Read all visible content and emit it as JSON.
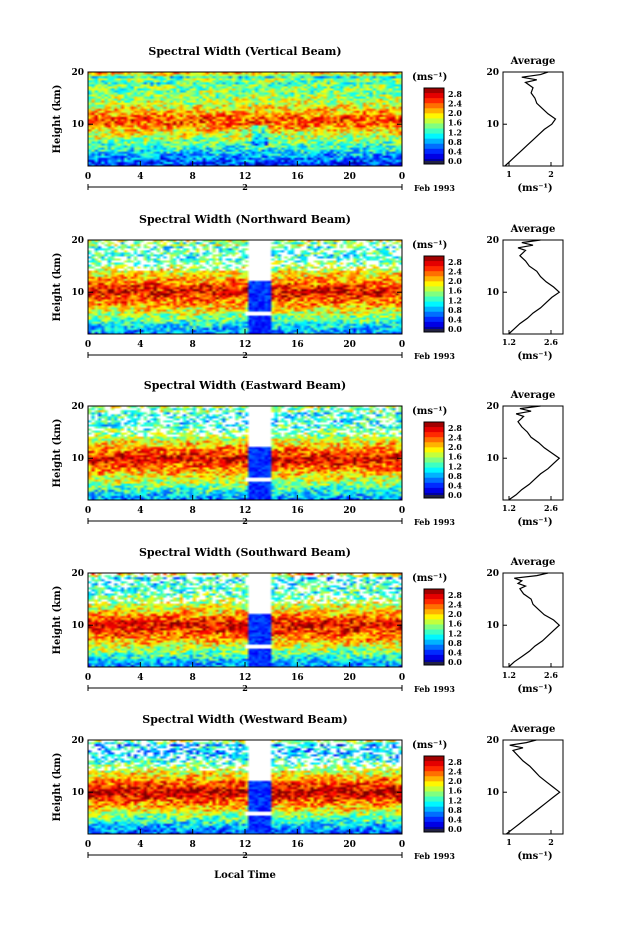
{
  "chart_data": [
    {
      "type": "heatmap",
      "title": "Spectral Width (Vertical Beam)",
      "ylabel": "Height (km)",
      "xlim": [
        0,
        24
      ],
      "ylim": [
        2,
        20
      ],
      "xticks": [
        "0",
        "4",
        "8",
        "12",
        "16",
        "20",
        "0"
      ],
      "yticks": [
        "10",
        "20"
      ],
      "day": "2",
      "date_label": "Feb 1993",
      "colorbar": {
        "unit": "(ms⁻¹)",
        "min": 0.0,
        "max": 2.8,
        "ticks": [
          "2.8",
          "2.4",
          "2.0",
          "1.6",
          "1.2",
          "0.8",
          "0.4",
          "0.0"
        ]
      },
      "average": {
        "title": "Average",
        "unit": "(ms⁻¹)",
        "xlim": [
          1,
          2.6
        ],
        "xticks": [
          "1",
          "2"
        ],
        "yticks": [
          "10",
          "20"
        ],
        "profile": [
          [
            1.05,
            2
          ],
          [
            1.2,
            3
          ],
          [
            1.35,
            4
          ],
          [
            1.5,
            5
          ],
          [
            1.65,
            6
          ],
          [
            1.8,
            7
          ],
          [
            1.95,
            8
          ],
          [
            2.1,
            9
          ],
          [
            2.3,
            10
          ],
          [
            2.4,
            11
          ],
          [
            2.2,
            12
          ],
          [
            2.05,
            13
          ],
          [
            1.9,
            14
          ],
          [
            1.85,
            15
          ],
          [
            1.75,
            16
          ],
          [
            1.8,
            17
          ],
          [
            1.6,
            18
          ],
          [
            1.9,
            18.5
          ],
          [
            1.5,
            19
          ],
          [
            2.0,
            19.5
          ],
          [
            2.2,
            20
          ]
        ]
      }
    },
    {
      "type": "heatmap",
      "title": "Spectral Width (Northward Beam)",
      "ylabel": "Height (km)",
      "xlim": [
        0,
        24
      ],
      "ylim": [
        2,
        20
      ],
      "xticks": [
        "0",
        "4",
        "8",
        "12",
        "16",
        "20",
        "0"
      ],
      "yticks": [
        "10",
        "20"
      ],
      "day": "2",
      "date_label": "Feb 1993",
      "colorbar": {
        "unit": "(ms⁻¹)",
        "min": 0.0,
        "max": 2.8,
        "ticks": [
          "2.8",
          "2.4",
          "2.0",
          "1.6",
          "1.2",
          "0.8",
          "0.4",
          "0.0"
        ]
      },
      "average": {
        "title": "Average",
        "unit": "(ms⁻¹)",
        "xlim": [
          1.1,
          2.7
        ],
        "xticks": [
          "1.2",
          "2.6"
        ],
        "yticks": [
          "10",
          "20"
        ],
        "profile": [
          [
            1.25,
            2
          ],
          [
            1.4,
            3
          ],
          [
            1.55,
            4
          ],
          [
            1.75,
            5
          ],
          [
            1.9,
            6
          ],
          [
            2.1,
            7
          ],
          [
            2.25,
            8
          ],
          [
            2.4,
            9
          ],
          [
            2.6,
            10
          ],
          [
            2.45,
            11
          ],
          [
            2.25,
            12
          ],
          [
            2.1,
            13
          ],
          [
            2.0,
            14
          ],
          [
            1.8,
            15
          ],
          [
            1.7,
            16
          ],
          [
            1.55,
            17
          ],
          [
            1.7,
            18
          ],
          [
            1.5,
            18.5
          ],
          [
            1.9,
            19
          ],
          [
            1.6,
            19.5
          ],
          [
            2.1,
            20
          ]
        ]
      }
    },
    {
      "type": "heatmap",
      "title": "Spectral Width (Eastward Beam)",
      "ylabel": "Height (km)",
      "xlim": [
        0,
        24
      ],
      "ylim": [
        2,
        20
      ],
      "xticks": [
        "0",
        "4",
        "8",
        "12",
        "16",
        "20",
        "0"
      ],
      "yticks": [
        "10",
        "20"
      ],
      "day": "2",
      "date_label": "Feb 1993",
      "colorbar": {
        "unit": "(ms⁻¹)",
        "min": 0.0,
        "max": 2.8,
        "ticks": [
          "2.8",
          "2.4",
          "2.0",
          "1.6",
          "1.2",
          "0.8",
          "0.4",
          "0.0"
        ]
      },
      "average": {
        "title": "Average",
        "unit": "(ms⁻¹)",
        "xlim": [
          1.1,
          2.7
        ],
        "xticks": [
          "1.2",
          "2.6"
        ],
        "yticks": [
          "10",
          "20"
        ],
        "profile": [
          [
            1.25,
            2
          ],
          [
            1.45,
            3
          ],
          [
            1.6,
            4
          ],
          [
            1.8,
            5
          ],
          [
            1.95,
            6
          ],
          [
            2.1,
            7
          ],
          [
            2.3,
            8
          ],
          [
            2.45,
            9
          ],
          [
            2.6,
            10
          ],
          [
            2.4,
            11
          ],
          [
            2.2,
            12
          ],
          [
            2.05,
            13
          ],
          [
            1.85,
            14
          ],
          [
            1.75,
            15
          ],
          [
            1.6,
            16
          ],
          [
            1.5,
            17
          ],
          [
            1.65,
            18
          ],
          [
            1.45,
            18.5
          ],
          [
            1.85,
            19
          ],
          [
            1.55,
            19.5
          ],
          [
            2.1,
            20
          ]
        ]
      }
    },
    {
      "type": "heatmap",
      "title": "Spectral Width (Southward Beam)",
      "ylabel": "Height (km)",
      "xlim": [
        0,
        24
      ],
      "ylim": [
        2,
        20
      ],
      "xticks": [
        "0",
        "4",
        "8",
        "12",
        "16",
        "20",
        "0"
      ],
      "yticks": [
        "10",
        "20"
      ],
      "day": "2",
      "date_label": "Feb 1993",
      "colorbar": {
        "unit": "(ms⁻¹)",
        "min": 0.0,
        "max": 2.8,
        "ticks": [
          "2.8",
          "2.4",
          "2.0",
          "1.6",
          "1.2",
          "0.8",
          "0.4",
          "0.0"
        ]
      },
      "average": {
        "title": "Average",
        "unit": "(ms⁻¹)",
        "xlim": [
          1.1,
          2.7
        ],
        "xticks": [
          "1.2",
          "2.6"
        ],
        "yticks": [
          "10",
          "20"
        ],
        "profile": [
          [
            1.25,
            2
          ],
          [
            1.4,
            3
          ],
          [
            1.6,
            4
          ],
          [
            1.8,
            5
          ],
          [
            1.95,
            6
          ],
          [
            2.15,
            7
          ],
          [
            2.3,
            8
          ],
          [
            2.45,
            9
          ],
          [
            2.6,
            10
          ],
          [
            2.45,
            11
          ],
          [
            2.2,
            12
          ],
          [
            2.05,
            13
          ],
          [
            1.9,
            14
          ],
          [
            1.85,
            15
          ],
          [
            1.65,
            16
          ],
          [
            1.55,
            17
          ],
          [
            1.7,
            17.5
          ],
          [
            1.5,
            18
          ],
          [
            1.6,
            18.5
          ],
          [
            1.4,
            19
          ],
          [
            2.0,
            19.5
          ],
          [
            2.3,
            20
          ]
        ]
      }
    },
    {
      "type": "heatmap",
      "title": "Spectral Width (Westward Beam)",
      "ylabel": "Height (km)",
      "xlim": [
        0,
        24
      ],
      "ylim": [
        2,
        20
      ],
      "xticks": [
        "0",
        "4",
        "8",
        "12",
        "16",
        "20",
        "0"
      ],
      "yticks": [
        "10",
        "20"
      ],
      "day": "2",
      "date_label": "Feb 1993",
      "colorbar": {
        "unit": "(ms⁻¹)",
        "min": 0.0,
        "max": 2.8,
        "ticks": [
          "2.8",
          "2.4",
          "2.0",
          "1.6",
          "1.2",
          "0.8",
          "0.4",
          "0.0"
        ]
      },
      "average": {
        "title": "Average",
        "unit": "(ms⁻¹)",
        "xlim": [
          1,
          2.8
        ],
        "xticks": [
          "1",
          "2"
        ],
        "yticks": [
          "10",
          "20"
        ],
        "profile": [
          [
            1.1,
            2
          ],
          [
            1.3,
            3
          ],
          [
            1.5,
            4
          ],
          [
            1.7,
            5
          ],
          [
            1.9,
            6
          ],
          [
            2.1,
            7
          ],
          [
            2.3,
            8
          ],
          [
            2.5,
            9
          ],
          [
            2.7,
            10
          ],
          [
            2.5,
            11
          ],
          [
            2.3,
            12
          ],
          [
            2.1,
            13
          ],
          [
            1.95,
            14
          ],
          [
            1.8,
            15
          ],
          [
            1.6,
            16
          ],
          [
            1.45,
            17
          ],
          [
            1.3,
            18
          ],
          [
            1.6,
            18.5
          ],
          [
            1.2,
            19
          ],
          [
            1.7,
            19.5
          ],
          [
            2.0,
            20
          ]
        ]
      }
    }
  ],
  "xlabel": "Local Time"
}
